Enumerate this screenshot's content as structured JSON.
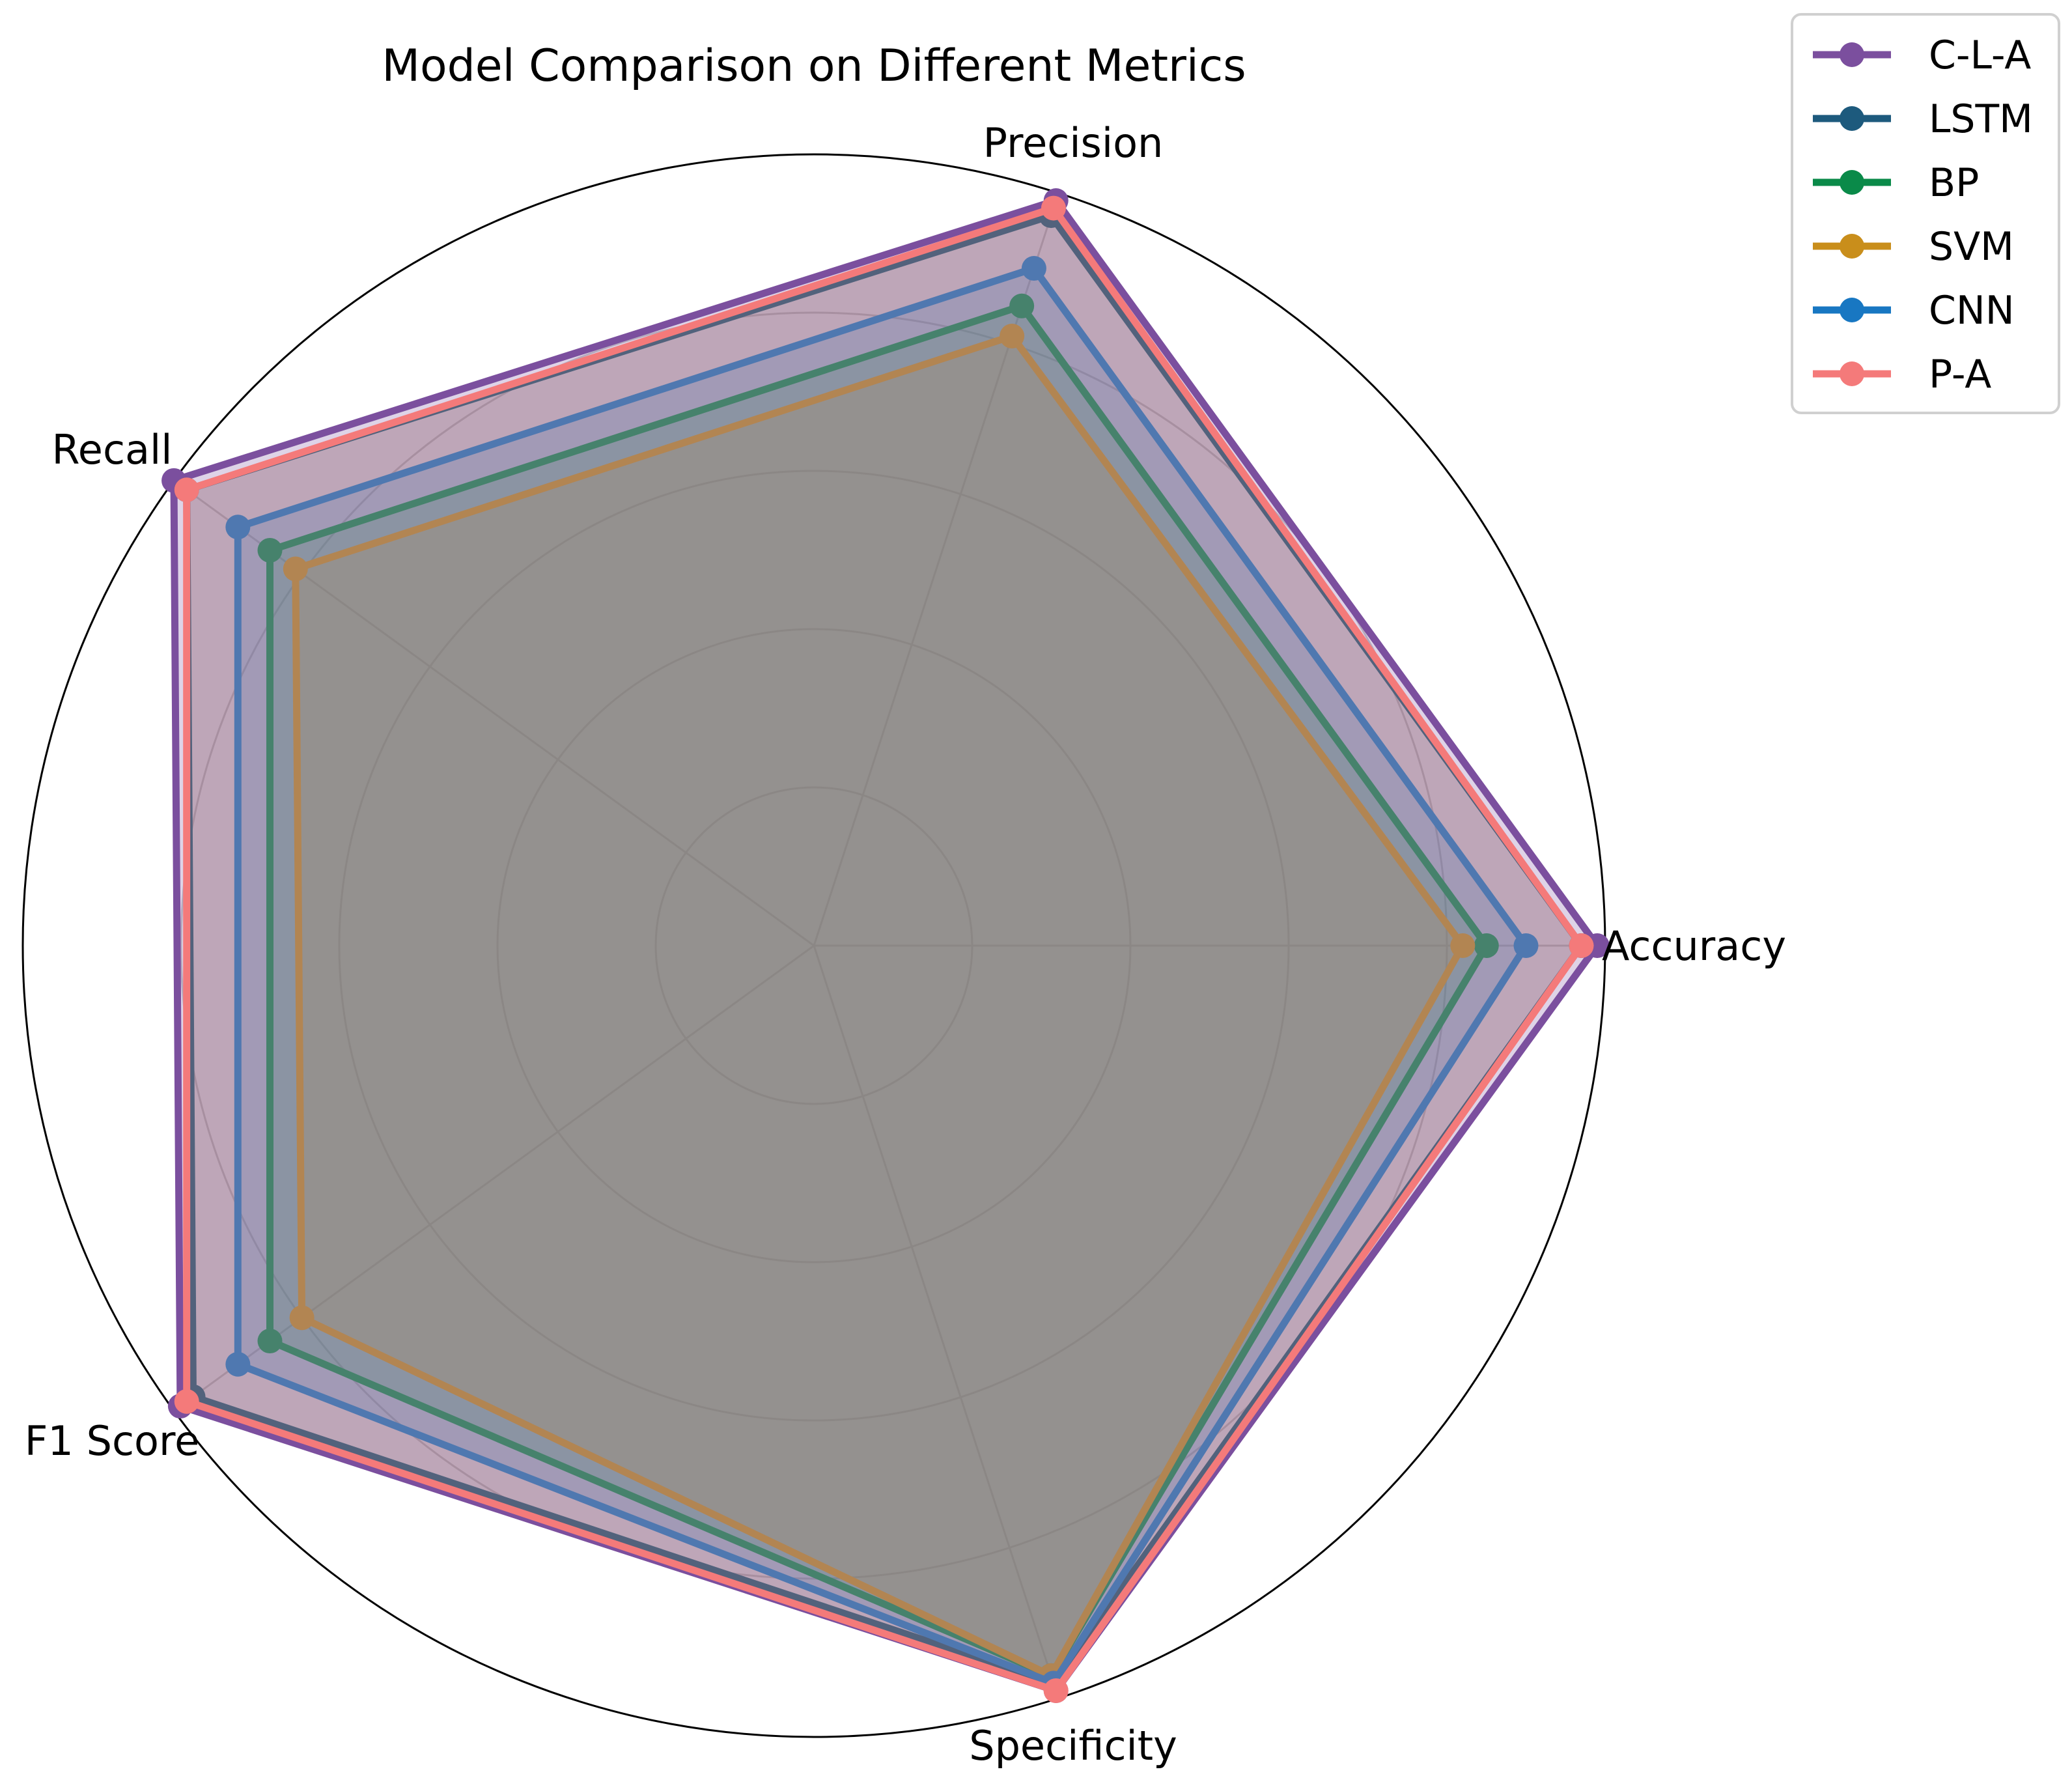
{
  "chart_data": {
    "type": "radar",
    "title": "Model Comparison on Different Metrics",
    "categories": [
      "Accuracy",
      "Precision",
      "Recall",
      "F1 Score",
      "Specificity"
    ],
    "rlim": [
      0,
      1
    ],
    "grid": true,
    "legend_position": "top-right, outside plot",
    "series": [
      {
        "name": "C-L-A",
        "color": "#7b4f9e",
        "values": [
          0.99,
          0.99,
          1.0,
          0.99,
          0.99
        ]
      },
      {
        "name": "LSTM",
        "color": "#1d5a7d",
        "values": [
          0.97,
          0.97,
          0.98,
          0.97,
          0.98
        ]
      },
      {
        "name": "BP",
        "color": "#0a8a49",
        "values": [
          0.85,
          0.85,
          0.85,
          0.85,
          0.97
        ]
      },
      {
        "name": "SVM",
        "color": "#c98e1b",
        "values": [
          0.82,
          0.81,
          0.81,
          0.8,
          0.97
        ]
      },
      {
        "name": "CNN",
        "color": "#1877c2",
        "values": [
          0.9,
          0.9,
          0.9,
          0.9,
          0.98
        ]
      },
      {
        "name": "P-A",
        "color": "#f47a7a",
        "values": [
          0.97,
          0.98,
          0.98,
          0.98,
          0.99
        ]
      }
    ]
  }
}
